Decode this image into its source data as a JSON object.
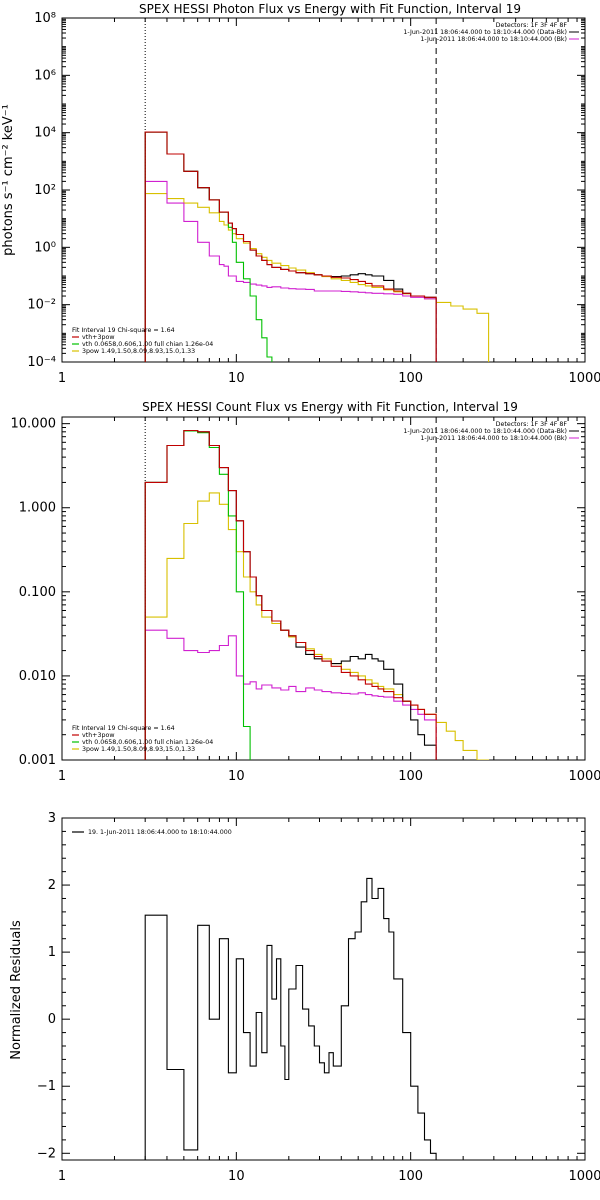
{
  "chart_data": [
    {
      "type": "line",
      "scale": {
        "x": "log",
        "y": "log"
      },
      "title": "SPEX HESSI Photon Flux vs Energy with Fit Function, Interval 19",
      "xlabel": "",
      "ylabel": "photons s⁻¹ cm⁻² keV⁻¹",
      "xlim": [
        1,
        1000
      ],
      "ylim": [
        0.0001,
        100000000
      ],
      "x_ticks": [
        "1",
        "10",
        "100",
        "1000"
      ],
      "y_ticks": [
        "10⁻⁴",
        "10⁻²",
        "10⁰",
        "10²",
        "10⁴",
        "10⁶",
        "10⁸"
      ],
      "x_edges": [
        3,
        3.5,
        4,
        4.5,
        5,
        5.5,
        6,
        6.5,
        7,
        7.5,
        8,
        8.5,
        9,
        9.5,
        10,
        11,
        12,
        13,
        14,
        15,
        16,
        18,
        20,
        22,
        25,
        28,
        31,
        35,
        40,
        45,
        50,
        55,
        60,
        70,
        80,
        90,
        100,
        120,
        140,
        170,
        200,
        240,
        280
      ],
      "vlines": [
        {
          "x": 3,
          "style": "dotted"
        },
        {
          "x": 140,
          "style": "dashed"
        }
      ],
      "annotation_top": [
        "Detectors: 1F 3F 4F 8F",
        "1-Jun-2011 18:06:44.000 to 18:10:44.000 (Data-Bk)",
        "1-Jun-2011 18:06:44.000 to 18:10:44.000 (Bk)"
      ],
      "legend_header": "Fit Interval 19   Chi-square = 1.64",
      "series": [
        {
          "name": "vth+3pow",
          "color": "#c00000",
          "values": [
            10500,
            10500,
            1800,
            1800,
            450,
            450,
            120,
            120,
            45,
            45,
            17,
            17,
            7,
            4.5,
            2.8,
            1.6,
            0.8,
            0.5,
            0.35,
            0.25,
            0.2,
            0.17,
            0.15,
            0.13,
            0.12,
            0.11,
            0.1,
            0.09,
            0.085,
            0.075,
            0.065,
            0.055,
            0.045,
            0.035,
            0.03,
            0.025,
            0.02,
            0.018,
            null,
            null,
            null,
            null
          ]
        },
        {
          "name": "vth 0.0658,0.606,1.00  full chian 1.26e-04",
          "color": "#00c000",
          "values": [
            10500,
            10500,
            1800,
            1800,
            450,
            450,
            120,
            120,
            45,
            45,
            17,
            17,
            5,
            1.5,
            0.3,
            0.08,
            0.02,
            0.003,
            0.0007,
            0.00015,
            3e-05,
            null,
            null,
            null,
            null,
            null,
            null,
            null,
            null,
            null,
            null,
            null,
            null,
            null,
            null,
            null,
            null,
            null,
            null,
            null,
            null,
            null
          ]
        },
        {
          "name": "3pow 1.49,1.50,8.09,8.93,15.0,1.33",
          "color": "#d8c000",
          "values": [
            75,
            75,
            50,
            50,
            35,
            35,
            25,
            25,
            16,
            16,
            8,
            6,
            4,
            3,
            2,
            1.4,
            0.9,
            0.6,
            0.45,
            0.35,
            0.28,
            0.23,
            0.19,
            0.16,
            0.13,
            0.11,
            0.095,
            0.08,
            0.07,
            0.06,
            0.05,
            0.045,
            0.04,
            0.033,
            0.028,
            0.024,
            0.02,
            0.016,
            0.012,
            0.009,
            0.007,
            0.005
          ]
        },
        {
          "name": "Data-Bk",
          "color": "#000000",
          "values": [
            10500,
            10500,
            1800,
            1800,
            450,
            450,
            120,
            120,
            45,
            45,
            17,
            17,
            7,
            4.5,
            2.8,
            1.6,
            0.8,
            0.5,
            0.35,
            0.25,
            0.2,
            0.17,
            0.15,
            0.13,
            0.12,
            0.11,
            0.1,
            0.095,
            0.1,
            0.11,
            0.12,
            0.11,
            0.1,
            0.07,
            0.035,
            0.025,
            0.02,
            0.018,
            null,
            null,
            null,
            null
          ]
        },
        {
          "name": "Bk",
          "color": "#d020d0",
          "values": [
            200,
            200,
            35,
            35,
            8,
            8,
            1.5,
            1.5,
            0.5,
            0.5,
            0.25,
            0.22,
            0.1,
            0.1,
            0.065,
            0.06,
            0.052,
            0.048,
            0.045,
            0.04,
            0.042,
            0.038,
            0.036,
            0.035,
            0.034,
            0.03,
            0.03,
            0.03,
            0.029,
            0.028,
            0.027,
            0.026,
            0.025,
            0.024,
            0.023,
            0.02,
            0.018,
            0.016,
            null,
            null,
            null,
            null
          ]
        }
      ]
    },
    {
      "type": "line",
      "scale": {
        "x": "log",
        "y": "log"
      },
      "title": "SPEX HESSI Count Flux vs Energy with Fit Function, Interval 19",
      "xlabel": "",
      "ylabel": "",
      "xlim": [
        1,
        1000
      ],
      "ylim": [
        0.001,
        12
      ],
      "x_ticks": [
        "1",
        "10",
        "100",
        "1000"
      ],
      "y_ticks": [
        "0.001",
        "0.010",
        "0.100",
        "1.000",
        "10.000"
      ],
      "x_edges": [
        3,
        4,
        5,
        6,
        7,
        8,
        9,
        10,
        11,
        12,
        13,
        14,
        16,
        18,
        20,
        22,
        25,
        28,
        31,
        35,
        40,
        45,
        50,
        55,
        60,
        65,
        70,
        80,
        90,
        100,
        110,
        120,
        140,
        160,
        180,
        200,
        240,
        280
      ],
      "vlines": [
        {
          "x": 3,
          "style": "dotted"
        },
        {
          "x": 140,
          "style": "dashed"
        }
      ],
      "annotation_top": [
        "Detectors: 1F 3F 4F 8F",
        "1-Jun-2011 18:06:44.000 to 18:10:44.000 (Data-Bk)",
        "1-Jun-2011 18:06:44.000 to 18:10:44.000 (Bk)"
      ],
      "legend_header": "Fit Interval 19   Chi-square = 1.64",
      "series": [
        {
          "name": "vth+3pow",
          "color": "#c00000",
          "values": [
            2.0,
            5.5,
            8.3,
            8.0,
            5.5,
            3.0,
            1.6,
            0.7,
            0.3,
            0.15,
            0.09,
            0.06,
            0.045,
            0.035,
            0.03,
            0.025,
            0.02,
            0.017,
            0.015,
            0.013,
            0.011,
            0.01,
            0.009,
            0.008,
            0.0075,
            0.007,
            0.0065,
            0.0055,
            0.005,
            0.0045,
            0.004,
            0.0035,
            null,
            null,
            null,
            null,
            null
          ]
        },
        {
          "name": "vth 0.0658,0.606,1.00  full chian 1.26e-04",
          "color": "#00c000",
          "values": [
            2.0,
            5.5,
            8.2,
            7.8,
            5.2,
            2.5,
            0.8,
            0.1,
            0.0025,
            0.0008,
            null,
            null,
            null,
            null,
            null,
            null,
            null,
            null,
            null,
            null,
            null,
            null,
            null,
            null,
            null,
            null,
            null,
            null,
            null,
            null,
            null,
            null,
            null,
            null,
            null,
            null,
            null
          ]
        },
        {
          "name": "3pow 1.49,1.50,8.09,8.93,15.0,1.33",
          "color": "#d8c000",
          "values": [
            0.05,
            0.25,
            0.65,
            1.2,
            1.5,
            1.1,
            0.55,
            0.3,
            0.15,
            0.1,
            0.07,
            0.05,
            0.042,
            0.035,
            0.029,
            0.025,
            0.021,
            0.018,
            0.016,
            0.014,
            0.012,
            0.011,
            0.01,
            0.009,
            0.0082,
            0.0075,
            0.007,
            0.006,
            0.005,
            0.0045,
            0.004,
            0.0035,
            0.0028,
            0.0022,
            0.0017,
            0.0013,
            0.001
          ]
        },
        {
          "name": "Data-Bk",
          "color": "#000000",
          "values": [
            2.0,
            5.5,
            8.3,
            8.0,
            5.5,
            3.0,
            1.6,
            0.7,
            0.3,
            0.15,
            0.09,
            0.06,
            0.045,
            0.035,
            0.03,
            0.022,
            0.018,
            0.016,
            0.015,
            0.014,
            0.015,
            0.017,
            0.016,
            0.018,
            0.016,
            0.015,
            0.012,
            0.008,
            0.005,
            0.003,
            0.002,
            0.0015,
            null,
            null,
            null,
            null,
            null
          ]
        },
        {
          "name": "Bk",
          "color": "#d020d0",
          "values": [
            0.035,
            0.028,
            0.02,
            0.019,
            0.02,
            0.023,
            0.03,
            0.01,
            0.008,
            0.0085,
            0.007,
            0.0078,
            0.0072,
            0.0068,
            0.0075,
            0.0065,
            0.0072,
            0.0068,
            0.0065,
            0.0063,
            0.0062,
            0.0061,
            0.0063,
            0.006,
            0.0058,
            0.0057,
            0.0056,
            0.005,
            0.0045,
            0.004,
            0.0035,
            0.003,
            null,
            null,
            null,
            null,
            null
          ]
        }
      ]
    },
    {
      "type": "line",
      "scale": {
        "x": "log",
        "y": "linear"
      },
      "title": "",
      "xlabel": "",
      "ylabel": "Normalized Residuals",
      "xlim": [
        1,
        1000
      ],
      "ylim": [
        -2.1,
        3
      ],
      "x_ticks": [
        "1",
        "10",
        "100",
        "1000"
      ],
      "y_ticks": [
        "−2",
        "−1",
        "0",
        "1",
        "2",
        "3"
      ],
      "x_edges": [
        3,
        4,
        5,
        6,
        7,
        8,
        9,
        10,
        11,
        12,
        13,
        14,
        15,
        16,
        17,
        18,
        19,
        20,
        22,
        24,
        26,
        28,
        30,
        32,
        34,
        36,
        40,
        44,
        48,
        52,
        56,
        60,
        65,
        70,
        75,
        80,
        90,
        100,
        110,
        120,
        130,
        140
      ],
      "legend": "19.  1-Jun-2011 18:06:44.000 to 18:10:44.000",
      "series": [
        {
          "name": "19.  1-Jun-2011 18:06:44.000 to 18:10:44.000",
          "color": "#000000",
          "values": [
            1.55,
            -0.75,
            -1.95,
            1.4,
            0.0,
            1.2,
            -0.8,
            0.9,
            -0.2,
            -0.7,
            0.1,
            -0.5,
            1.1,
            0.3,
            0.9,
            -0.4,
            -0.9,
            0.45,
            0.8,
            0.15,
            -0.1,
            -0.4,
            -0.65,
            -0.8,
            -0.5,
            -0.7,
            0.2,
            1.2,
            1.3,
            1.75,
            2.1,
            1.8,
            1.95,
            1.5,
            1.3,
            0.6,
            -0.2,
            -1.0,
            -1.4,
            -1.8,
            -2.0
          ]
        }
      ]
    }
  ]
}
